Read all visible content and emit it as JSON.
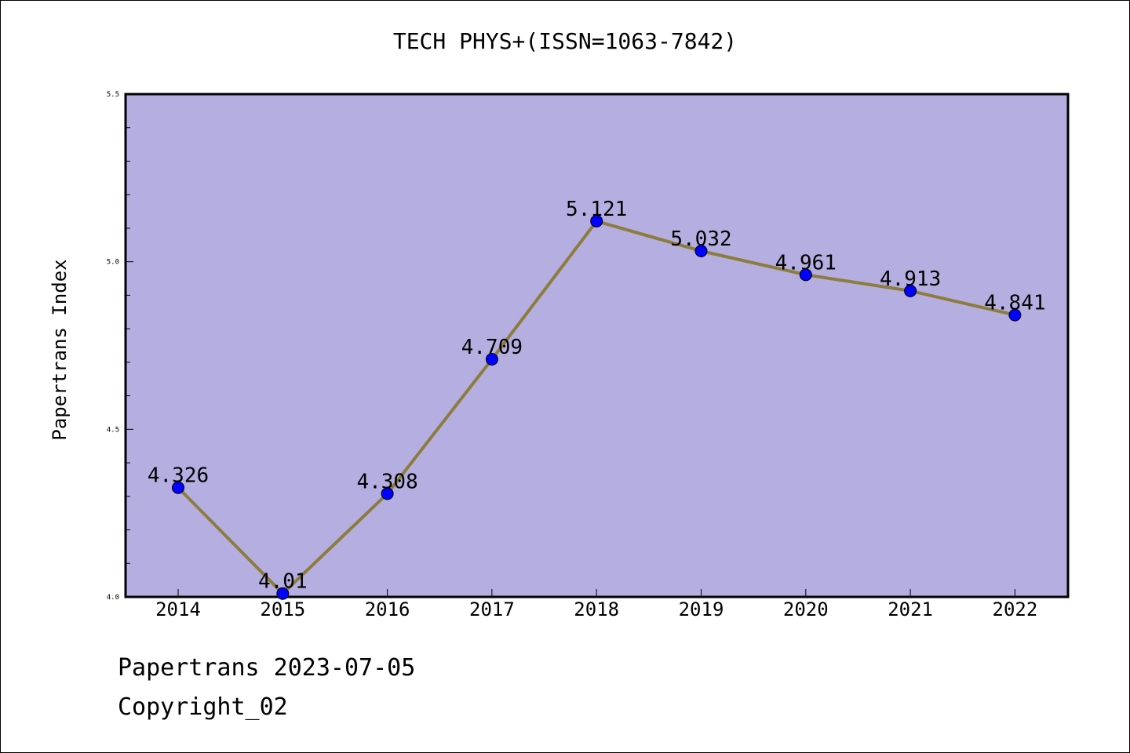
{
  "chart_data": {
    "type": "line",
    "title": "TECH PHYS+(ISSN=1063-7842)",
    "xlabel": "",
    "ylabel": "Papertrans Index",
    "categories": [
      "2014",
      "2015",
      "2016",
      "2017",
      "2018",
      "2019",
      "2020",
      "2021",
      "2022"
    ],
    "series": [
      {
        "values": [
          4.326,
          4.01,
          4.308,
          4.709,
          5.121,
          5.032,
          4.961,
          4.913,
          4.841
        ],
        "data_labels": [
          "4.326",
          "4.01",
          "4.308",
          "4.709",
          "5.121",
          "5.032",
          "4.961",
          "4.913",
          "4.841"
        ]
      }
    ],
    "ylim": [
      4.0,
      5.5
    ],
    "y_ticks": [
      "4.0",
      "4.5",
      "5.0",
      "5.5"
    ],
    "y_minor_step": 0.1,
    "grid": false,
    "colors": {
      "plot_background": "#b5aee1",
      "line": "#8c7d3d",
      "marker": "#0000ff"
    }
  },
  "footer": {
    "date_line": "Papertrans 2023-07-05",
    "copyright_line": "Copyright_02"
  }
}
